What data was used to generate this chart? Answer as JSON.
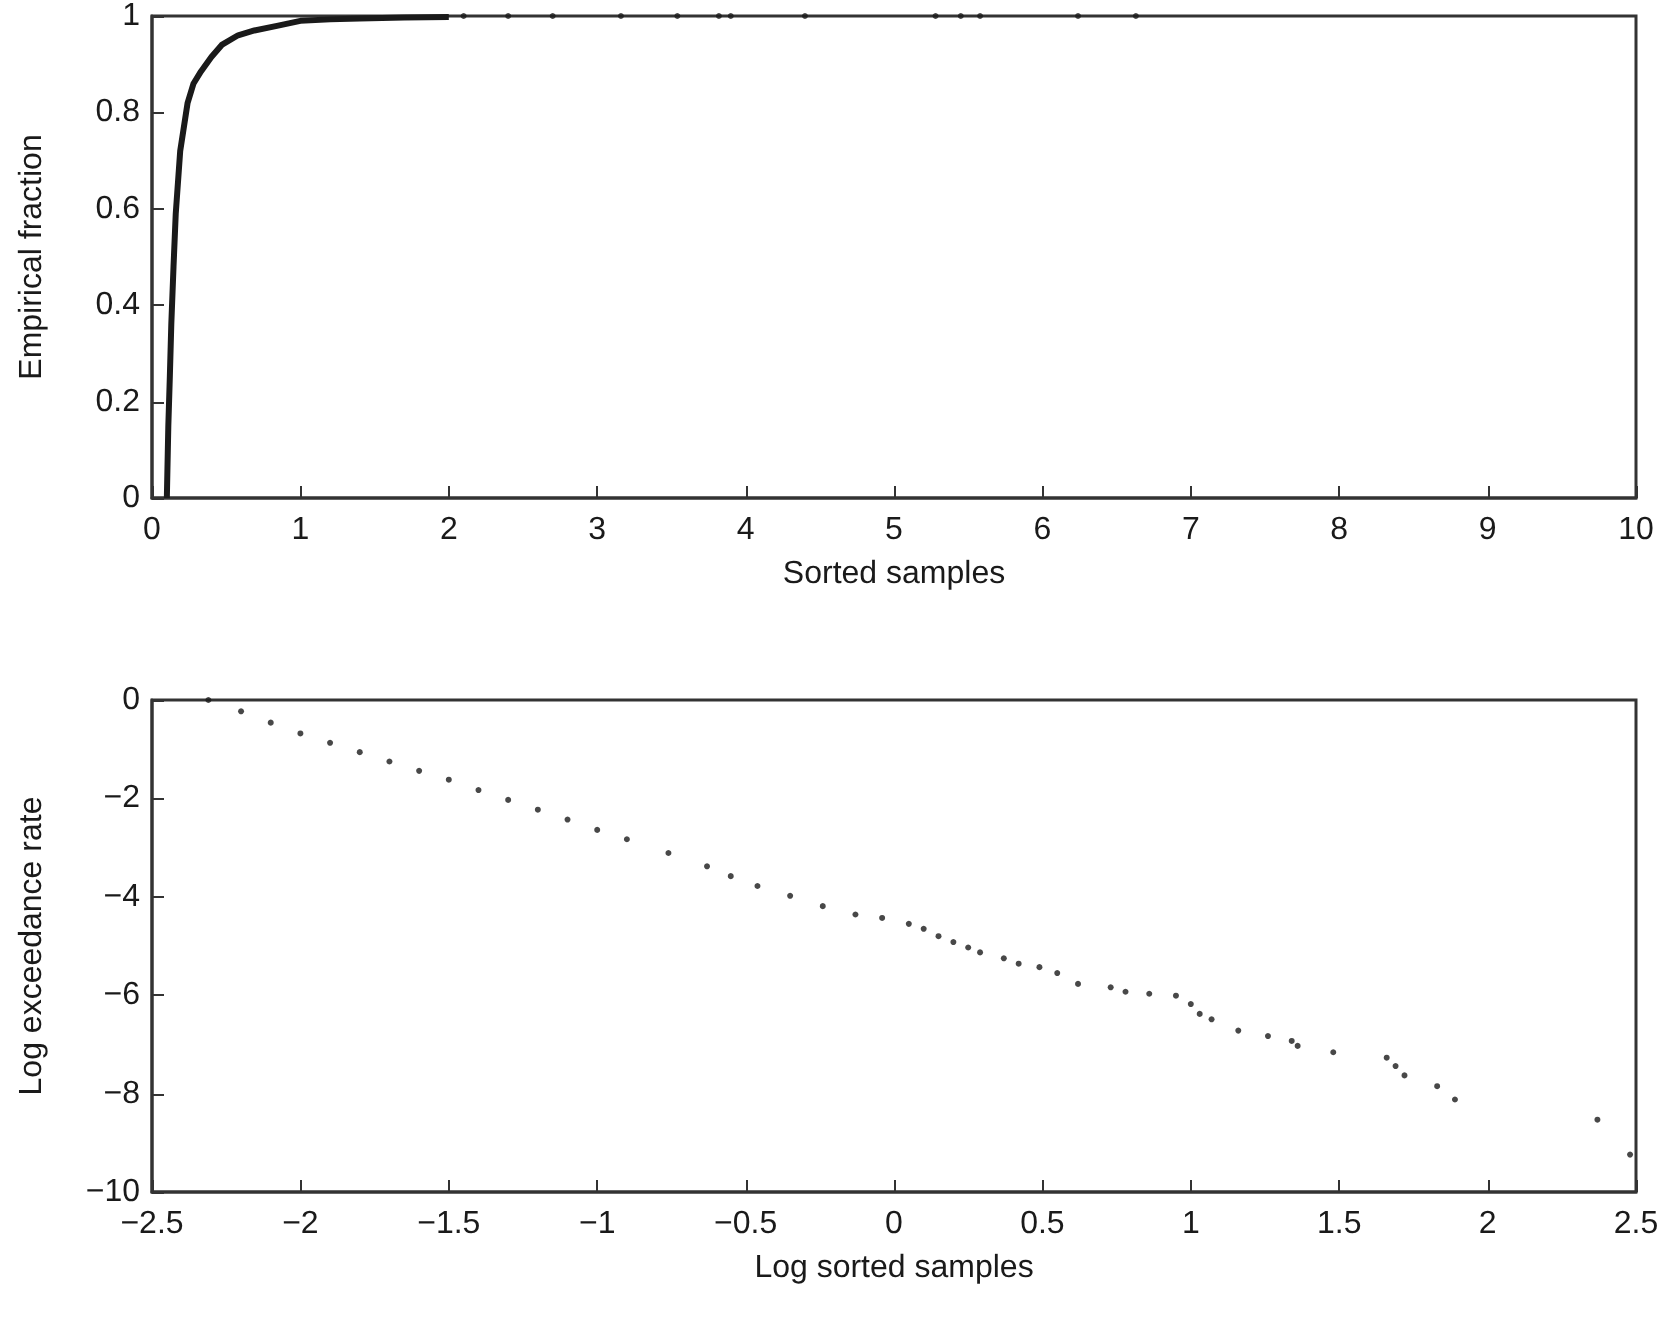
{
  "chart_data": [
    {
      "type": "line",
      "xlabel": "Sorted samples",
      "ylabel": "Empirical fraction",
      "xlim": [
        0,
        10
      ],
      "ylim": [
        0,
        1
      ],
      "xticks": [
        0,
        1,
        2,
        3,
        4,
        5,
        6,
        7,
        8,
        9,
        10
      ],
      "yticks": [
        0,
        0.2,
        0.4,
        0.6,
        0.8,
        1
      ],
      "series": [
        {
          "marker": "none",
          "color": "#1a1a1a",
          "x": [
            0.1,
            0.11,
            0.12,
            0.13,
            0.145,
            0.16,
            0.19,
            0.24,
            0.28,
            0.33,
            0.4,
            0.47,
            0.58,
            0.69,
            0.85,
            1.0,
            1.2,
            1.4,
            1.7,
            2.0
          ],
          "values": [
            0,
            0.15,
            0.25,
            0.36,
            0.48,
            0.59,
            0.72,
            0.82,
            0.86,
            0.885,
            0.915,
            0.94,
            0.96,
            0.97,
            0.98,
            0.99,
            0.993,
            0.995,
            0.997,
            0.998
          ]
        },
        {
          "type": "scatter",
          "marker": "circle",
          "color": "#1a1a1a",
          "x": [
            2.1,
            2.4,
            2.7,
            3.16,
            3.54,
            3.82,
            3.9,
            4.4,
            5.28,
            5.45,
            5.58,
            6.24,
            6.63
          ],
          "values": [
            1,
            1,
            1,
            1,
            1,
            1,
            1,
            1,
            1,
            1,
            1,
            1,
            1
          ]
        }
      ]
    },
    {
      "type": "scatter",
      "xlabel": "Log sorted samples",
      "ylabel": "Log exceedance rate",
      "xlim": [
        -2.5,
        2.5
      ],
      "ylim": [
        -10,
        0
      ],
      "xticks": [
        -2.5,
        -2,
        -1.5,
        -1,
        -0.5,
        0,
        0.5,
        1,
        1.5,
        2,
        2.5
      ],
      "yticks": [
        -10,
        -8,
        -6,
        -4,
        -2,
        0
      ],
      "series": [
        {
          "marker": "circle",
          "color": "#1a1a1a",
          "x": [
            -2.31,
            -2.2,
            -2.1,
            -2.0,
            -1.9,
            -1.8,
            -1.7,
            -1.6,
            -1.5,
            -1.4,
            -1.3,
            -1.2,
            -1.1,
            -1.0,
            -0.9,
            -0.76,
            -0.63,
            -0.55,
            -0.46,
            -0.35,
            -0.24,
            -0.13,
            -0.04,
            0.05,
            0.1,
            0.15,
            0.2,
            0.25,
            0.29,
            0.37,
            0.42,
            0.49,
            0.55,
            0.62,
            0.73,
            0.78,
            0.86,
            0.95,
            1.0,
            1.03,
            1.07,
            1.16,
            1.26,
            1.34,
            1.36,
            1.48,
            1.66,
            1.69,
            1.72,
            1.83,
            1.89,
            2.37,
            2.48
          ],
          "values": [
            0,
            -0.23,
            -0.46,
            -0.68,
            -0.87,
            -1.06,
            -1.25,
            -1.44,
            -1.62,
            -1.83,
            -2.03,
            -2.23,
            -2.43,
            -2.64,
            -2.83,
            -3.11,
            -3.38,
            -3.58,
            -3.78,
            -3.98,
            -4.19,
            -4.36,
            -4.43,
            -4.55,
            -4.65,
            -4.8,
            -4.92,
            -5.03,
            -5.13,
            -5.25,
            -5.36,
            -5.43,
            -5.55,
            -5.77,
            -5.84,
            -5.93,
            -5.97,
            -6.01,
            -6.18,
            -6.38,
            -6.49,
            -6.72,
            -6.83,
            -6.93,
            -7.03,
            -7.16,
            -7.27,
            -7.44,
            -7.63,
            -7.85,
            -8.12,
            -8.53,
            -9.24
          ]
        }
      ]
    }
  ]
}
